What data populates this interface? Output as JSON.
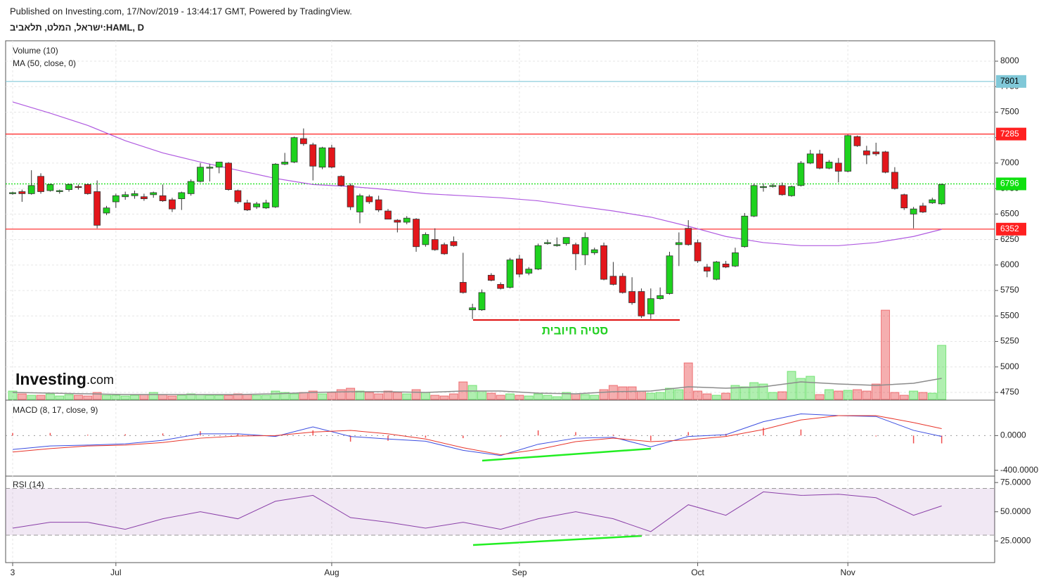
{
  "header": {
    "published": "Published on Investing.com, 17/Nov/2019 - 13:44:17 GMT, Powered by TradingView.",
    "symbol": "ישראל, המלט, תלאביב:HAML, D"
  },
  "chart_data": [
    {
      "type": "candlestick",
      "categories": [
        "3",
        null,
        null,
        null,
        null,
        null,
        null,
        null,
        null,
        null,
        null,
        "Jul",
        null,
        null,
        null,
        null,
        null,
        null,
        null,
        null,
        null,
        null,
        null,
        null,
        null,
        null,
        null,
        null,
        null,
        null,
        null,
        null,
        null,
        null,
        "Aug",
        null,
        null,
        null,
        null,
        null,
        null,
        null,
        null,
        null,
        null,
        null,
        null,
        null,
        null,
        null,
        null,
        null,
        null,
        null,
        "Sep",
        null,
        null,
        null,
        null,
        null,
        null,
        null,
        null,
        null,
        null,
        null,
        null,
        null,
        null,
        null,
        null,
        null,
        null,
        "Oct",
        null,
        null,
        null,
        null,
        null,
        null,
        null,
        null,
        null,
        null,
        null,
        null,
        null,
        null,
        null,
        "Nov",
        null,
        null,
        null,
        null,
        null,
        null,
        null,
        null,
        null,
        null
      ],
      "ohlc": [
        [
          6700,
          6720,
          6690,
          6710
        ],
        [
          6720,
          6740,
          6620,
          6700
        ],
        [
          6700,
          6930,
          6690,
          6780
        ],
        [
          6870,
          6900,
          6700,
          6720
        ],
        [
          6730,
          6800,
          6720,
          6790
        ],
        [
          6720,
          6740,
          6700,
          6730
        ],
        [
          6740,
          6800,
          6720,
          6790
        ],
        [
          6770,
          6790,
          6740,
          6760
        ],
        [
          6790,
          6800,
          6690,
          6700
        ],
        [
          6720,
          6830,
          6360,
          6390
        ],
        [
          6510,
          6580,
          6490,
          6560
        ],
        [
          6620,
          6700,
          6560,
          6680
        ],
        [
          6670,
          6720,
          6640,
          6690
        ],
        [
          6680,
          6730,
          6650,
          6700
        ],
        [
          6670,
          6700,
          6630,
          6650
        ],
        [
          6690,
          6720,
          6660,
          6710
        ],
        [
          6680,
          6790,
          6620,
          6630
        ],
        [
          6640,
          6660,
          6520,
          6550
        ],
        [
          6650,
          6720,
          6540,
          6710
        ],
        [
          6700,
          6840,
          6680,
          6820
        ],
        [
          6820,
          7000,
          6810,
          6960
        ],
        [
          6950,
          6990,
          6820,
          6960
        ],
        [
          6960,
          7010,
          6900,
          7010
        ],
        [
          7000,
          7010,
          6730,
          6740
        ],
        [
          6730,
          6740,
          6600,
          6620
        ],
        [
          6610,
          6640,
          6530,
          6540
        ],
        [
          6570,
          6620,
          6550,
          6600
        ],
        [
          6560,
          6640,
          6550,
          6610
        ],
        [
          6570,
          7000,
          6560,
          6990
        ],
        [
          6990,
          7100,
          6980,
          7010
        ],
        [
          7010,
          7260,
          7000,
          7250
        ],
        [
          7240,
          7340,
          7170,
          7190
        ],
        [
          7180,
          7200,
          6830,
          6970
        ],
        [
          6960,
          7160,
          6940,
          7150
        ],
        [
          7150,
          7180,
          6950,
          6960
        ],
        [
          6870,
          6880,
          6770,
          6780
        ],
        [
          6780,
          6800,
          6540,
          6570
        ],
        [
          6520,
          6700,
          6410,
          6680
        ],
        [
          6670,
          6690,
          6600,
          6620
        ],
        [
          6640,
          6680,
          6520,
          6540
        ],
        [
          6530,
          6550,
          6450,
          6450
        ],
        [
          6440,
          6450,
          6320,
          6420
        ],
        [
          6420,
          6480,
          6400,
          6460
        ],
        [
          6450,
          6460,
          6130,
          6180
        ],
        [
          6200,
          6320,
          6180,
          6300
        ],
        [
          6250,
          6360,
          6140,
          6150
        ],
        [
          6200,
          6220,
          6100,
          6110
        ],
        [
          6230,
          6280,
          6180,
          6190
        ],
        [
          5830,
          6120,
          5720,
          5730
        ],
        [
          5560,
          5620,
          5470,
          5580
        ],
        [
          5560,
          5760,
          5550,
          5730
        ],
        [
          5900,
          5920,
          5840,
          5850
        ],
        [
          5810,
          5830,
          5760,
          5770
        ],
        [
          5780,
          6070,
          5770,
          6050
        ],
        [
          6060,
          6100,
          5880,
          5910
        ],
        [
          5920,
          5980,
          5900,
          5960
        ],
        [
          5960,
          6210,
          5950,
          6190
        ],
        [
          6210,
          6250,
          6200,
          6220
        ],
        [
          6190,
          6270,
          6180,
          6200
        ],
        [
          6210,
          6270,
          6190,
          6270
        ],
        [
          6200,
          6220,
          5950,
          6110
        ],
        [
          6100,
          6320,
          6000,
          6270
        ],
        [
          6120,
          6170,
          6100,
          6150
        ],
        [
          6190,
          6220,
          5850,
          5860
        ],
        [
          5890,
          6030,
          5800,
          5810
        ],
        [
          5890,
          5920,
          5720,
          5730
        ],
        [
          5740,
          5880,
          5610,
          5630
        ],
        [
          5740,
          5770,
          5480,
          5500
        ],
        [
          5520,
          5770,
          5470,
          5670
        ],
        [
          5670,
          5780,
          5660,
          5700
        ],
        [
          5720,
          6130,
          5710,
          6090
        ],
        [
          6200,
          6320,
          5990,
          6220
        ],
        [
          6360,
          6440,
          6190,
          6200
        ],
        [
          6220,
          6250,
          6020,
          6040
        ],
        [
          5980,
          6010,
          5880,
          5940
        ],
        [
          5860,
          6040,
          5850,
          6030
        ],
        [
          6010,
          6040,
          5970,
          5980
        ],
        [
          5990,
          6170,
          5980,
          6120
        ],
        [
          6180,
          6510,
          6170,
          6480
        ],
        [
          6480,
          6800,
          6470,
          6780
        ],
        [
          6760,
          6800,
          6720,
          6770
        ],
        [
          6770,
          6800,
          6760,
          6780
        ],
        [
          6780,
          6810,
          6680,
          6690
        ],
        [
          6680,
          6780,
          6670,
          6770
        ],
        [
          6780,
          7020,
          6770,
          7000
        ],
        [
          7000,
          7130,
          6990,
          7090
        ],
        [
          7090,
          7130,
          6940,
          6950
        ],
        [
          6950,
          7030,
          6940,
          7010
        ],
        [
          7000,
          7050,
          6810,
          6920
        ],
        [
          6920,
          7280,
          6910,
          7270
        ],
        [
          7260,
          7270,
          7160,
          7170
        ],
        [
          7120,
          7170,
          6990,
          7080
        ],
        [
          7110,
          7200,
          7070,
          7090
        ],
        [
          7110,
          7120,
          6900,
          6910
        ],
        [
          6910,
          6960,
          6740,
          6750
        ],
        [
          6690,
          6700,
          6540,
          6560
        ],
        [
          6500,
          6570,
          6360,
          6550
        ],
        [
          6580,
          6610,
          6510,
          6520
        ],
        [
          6610,
          6660,
          6600,
          6640
        ],
        [
          6600,
          6800,
          6590,
          6790
        ]
      ],
      "up_color": "#1ed21e",
      "down_color": "#e3161b",
      "series": [
        {
          "name": "Volume (10)",
          "values": [
            12,
            8,
            6,
            6,
            8,
            5,
            7,
            6,
            5,
            10,
            6,
            6,
            5,
            6,
            7,
            10,
            7,
            5,
            6,
            8,
            7,
            6,
            6,
            6,
            8,
            7,
            6,
            6,
            12,
            10,
            8,
            10,
            12,
            8,
            10,
            14,
            16,
            12,
            10,
            8,
            12,
            10,
            8,
            14,
            10,
            6,
            5,
            8,
            25,
            20,
            12,
            9,
            6,
            8,
            6,
            5,
            8,
            6,
            4,
            10,
            8,
            7,
            6,
            14,
            20,
            18,
            18,
            12,
            9,
            10,
            16,
            14,
            52,
            12,
            8,
            6,
            9,
            20,
            18,
            24,
            22,
            10,
            11,
            40,
            30,
            33,
            7,
            14,
            12,
            13,
            14,
            12,
            22,
            127,
            10,
            6,
            12,
            10,
            9,
            77
          ],
          "ma_x": [
            0,
            4,
            8,
            12,
            16,
            20,
            24,
            28,
            32,
            36,
            40,
            44,
            48,
            52,
            56,
            60,
            64,
            68,
            72,
            76,
            80,
            84,
            88,
            92,
            96,
            99
          ],
          "ma_values": [
            10,
            9,
            8,
            7,
            7,
            7,
            7,
            8,
            10,
            11,
            11,
            10,
            12,
            12,
            9,
            8,
            11,
            12,
            18,
            16,
            18,
            25,
            22,
            20,
            23,
            30
          ],
          "ma_color": "#8c8c8c"
        },
        {
          "name": "MA (50, close, 0)",
          "x": [
            0,
            4,
            8,
            12,
            16,
            20,
            24,
            28,
            32,
            36,
            40,
            44,
            48,
            52,
            56,
            60,
            64,
            68,
            72,
            76,
            80,
            84,
            88,
            92,
            96,
            99
          ],
          "values": [
            7600,
            7490,
            7370,
            7220,
            7100,
            7010,
            6930,
            6850,
            6790,
            6770,
            6740,
            6700,
            6680,
            6660,
            6630,
            6580,
            6530,
            6470,
            6380,
            6280,
            6220,
            6190,
            6190,
            6220,
            6280,
            6350
          ],
          "color": "#b05be0"
        }
      ],
      "levels": [
        {
          "value": 7801,
          "color": "#80c8d8",
          "text_color": "#000000",
          "style": "solid"
        },
        {
          "value": 7285,
          "color": "#ff2020",
          "text_color": "#ffffff",
          "style": "solid"
        },
        {
          "value": 6796,
          "color": "#10e010",
          "text_color": "#ffffff",
          "style": "dotted"
        },
        {
          "value": 6352,
          "color": "#ff2020",
          "text_color": "#ffffff",
          "style": "solid"
        }
      ],
      "annotation": "סטיה חיובית",
      "logo": [
        "Investing",
        ".com"
      ],
      "ylim": [
        4681,
        8200
      ],
      "yticks": [
        8000,
        7750,
        7500,
        7250,
        7000,
        6750,
        6500,
        6250,
        6000,
        5750,
        5500,
        5250,
        5000,
        4750
      ],
      "grid": true
    },
    {
      "type": "macd",
      "title": "MACD (8, 17, close, 9)",
      "x": [
        0,
        4,
        8,
        12,
        16,
        20,
        24,
        28,
        32,
        36,
        40,
        44,
        48,
        52,
        56,
        60,
        64,
        68,
        72,
        76,
        80,
        84,
        88,
        92,
        96,
        99
      ],
      "macd": [
        -160,
        -120,
        -110,
        -95,
        -55,
        20,
        20,
        -10,
        100,
        -10,
        -40,
        -65,
        -170,
        -230,
        -100,
        -30,
        -20,
        -130,
        -10,
        10,
        160,
        250,
        230,
        220,
        60,
        -10
      ],
      "signal": [
        -190,
        -150,
        -120,
        -110,
        -80,
        -30,
        -5,
        0,
        40,
        60,
        20,
        -40,
        -140,
        -220,
        -160,
        -70,
        -30,
        -70,
        -50,
        -10,
        70,
        180,
        230,
        230,
        150,
        80
      ],
      "histogram": [
        30,
        30,
        10,
        15,
        25,
        50,
        25,
        -10,
        60,
        -70,
        -60,
        -25,
        -30,
        -10,
        60,
        40,
        10,
        -60,
        40,
        20,
        90,
        70,
        0,
        -10,
        -90,
        -90
      ],
      "macd_color": "#3b4de0",
      "signal_color": "#e8342a",
      "histogram_color": "#f05050",
      "ylim": [
        -467,
        408
      ],
      "yticks": [
        {
          "value": 0,
          "label": "0.0000"
        },
        {
          "value": -400,
          "label": "-400.0000"
        }
      ]
    },
    {
      "type": "line",
      "title": "RSI (14)",
      "x": [
        0,
        4,
        8,
        12,
        16,
        20,
        24,
        28,
        32,
        36,
        40,
        44,
        48,
        52,
        56,
        60,
        64,
        68,
        72,
        76,
        80,
        84,
        88,
        92,
        96,
        99
      ],
      "values": [
        36,
        41,
        41,
        35,
        44,
        50,
        44,
        59,
        64,
        45,
        41,
        36,
        41,
        35,
        44,
        50,
        44,
        33,
        56,
        47,
        67,
        64,
        65,
        62,
        47,
        55
      ],
      "color": "#8a3fa8",
      "bands": [
        30,
        70
      ],
      "ylim": [
        6.5,
        80.5
      ],
      "yticks": [
        {
          "value": 75,
          "label": "75.0000"
        },
        {
          "value": 50,
          "label": "50.0000"
        },
        {
          "value": 25,
          "label": "25.0000"
        }
      ]
    }
  ]
}
